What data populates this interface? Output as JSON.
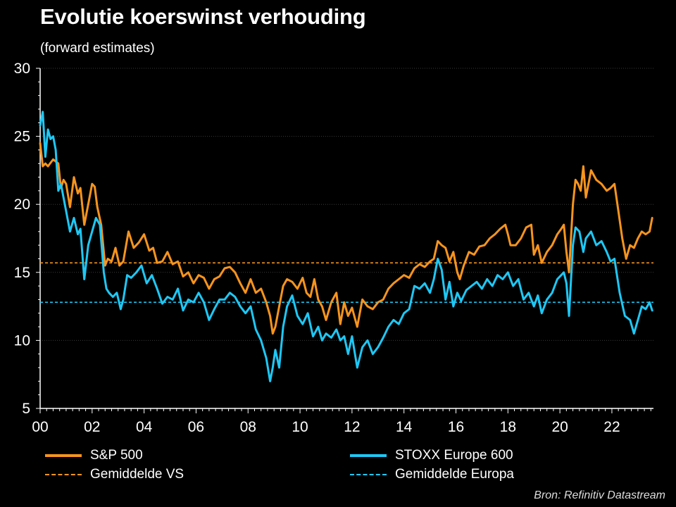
{
  "chart_data": {
    "type": "line",
    "title": "Evolutie koerswinst verhouding",
    "subtitle": "(forward estimates)",
    "ylim": [
      5,
      30
    ],
    "yticks": [
      5,
      10,
      15,
      20,
      25,
      30
    ],
    "xlim": [
      2000.0,
      2023.6
    ],
    "xticks": [
      2000,
      2002,
      2004,
      2006,
      2008,
      2010,
      2012,
      2014,
      2016,
      2018,
      2020,
      2022
    ],
    "xtick_labels": [
      "00",
      "02",
      "04",
      "06",
      "08",
      "10",
      "12",
      "14",
      "16",
      "18",
      "20",
      "22"
    ],
    "grid": "horizontal",
    "source": "Bron: Refinitiv Datastream",
    "colors": {
      "sp500": "#f7941d",
      "stoxx": "#1ec8f5",
      "background": "#000000"
    },
    "series": [
      {
        "name": "S&P 500",
        "style": "solid",
        "color": "#f7941d",
        "x": [
          2000.0,
          2000.1,
          2000.2,
          2000.3,
          2000.5,
          2000.7,
          2000.8,
          2000.9,
          2001.0,
          2001.15,
          2001.3,
          2001.45,
          2001.55,
          2001.7,
          2001.85,
          2002.0,
          2002.1,
          2002.2,
          2002.35,
          2002.5,
          2002.6,
          2002.75,
          2002.9,
          2003.05,
          2003.2,
          2003.4,
          2003.6,
          2003.8,
          2004.0,
          2004.2,
          2004.35,
          2004.5,
          2004.7,
          2004.9,
          2005.1,
          2005.3,
          2005.5,
          2005.7,
          2005.9,
          2006.1,
          2006.3,
          2006.5,
          2006.7,
          2006.9,
          2007.1,
          2007.3,
          2007.5,
          2007.7,
          2007.9,
          2008.1,
          2008.3,
          2008.5,
          2008.7,
          2008.85,
          2008.95,
          2009.05,
          2009.2,
          2009.35,
          2009.5,
          2009.7,
          2009.9,
          2010.1,
          2010.25,
          2010.4,
          2010.55,
          2010.7,
          2010.85,
          2011.0,
          2011.2,
          2011.4,
          2011.55,
          2011.7,
          2011.85,
          2012.0,
          2012.2,
          2012.4,
          2012.6,
          2012.8,
          2013.0,
          2013.2,
          2013.4,
          2013.6,
          2013.8,
          2014.0,
          2014.2,
          2014.4,
          2014.6,
          2014.8,
          2015.0,
          2015.15,
          2015.3,
          2015.45,
          2015.6,
          2015.75,
          2015.9,
          2016.05,
          2016.15,
          2016.3,
          2016.5,
          2016.7,
          2016.9,
          2017.1,
          2017.3,
          2017.5,
          2017.7,
          2017.9,
          2018.0,
          2018.1,
          2018.3,
          2018.5,
          2018.7,
          2018.9,
          2019.0,
          2019.15,
          2019.3,
          2019.5,
          2019.7,
          2019.9,
          2020.05,
          2020.15,
          2020.25,
          2020.35,
          2020.5,
          2020.6,
          2020.7,
          2020.8,
          2020.9,
          2021.0,
          2021.2,
          2021.4,
          2021.6,
          2021.8,
          2021.95,
          2022.1,
          2022.25,
          2022.4,
          2022.55,
          2022.7,
          2022.85,
          2023.0,
          2023.15,
          2023.3,
          2023.45,
          2023.55
        ],
        "y": [
          24.5,
          22.8,
          23.0,
          22.8,
          23.3,
          23.0,
          21.2,
          21.8,
          21.5,
          19.8,
          22.0,
          20.8,
          21.2,
          18.5,
          20.0,
          21.5,
          21.3,
          19.8,
          18.5,
          15.5,
          16.0,
          15.8,
          16.8,
          15.5,
          15.8,
          18.0,
          16.8,
          17.2,
          17.8,
          16.6,
          16.8,
          15.7,
          15.8,
          16.5,
          15.6,
          15.8,
          14.7,
          15.0,
          14.2,
          14.8,
          14.6,
          13.8,
          14.5,
          14.7,
          15.3,
          15.4,
          15.0,
          14.2,
          13.5,
          14.5,
          13.5,
          13.8,
          12.8,
          11.8,
          10.5,
          11.0,
          12.5,
          14.0,
          14.5,
          14.3,
          13.8,
          14.6,
          13.5,
          13.2,
          14.5,
          13.0,
          12.5,
          11.5,
          12.8,
          13.5,
          11.2,
          12.8,
          11.8,
          12.4,
          11.0,
          13.0,
          12.5,
          12.3,
          12.8,
          13.0,
          13.8,
          14.2,
          14.5,
          14.8,
          14.6,
          15.3,
          15.6,
          15.4,
          15.8,
          16.0,
          17.3,
          17.0,
          16.8,
          15.8,
          16.5,
          15.0,
          14.5,
          15.5,
          16.5,
          16.3,
          16.9,
          17.0,
          17.5,
          17.8,
          18.2,
          18.5,
          17.8,
          17.0,
          17.0,
          17.5,
          18.3,
          18.5,
          16.3,
          17.0,
          15.7,
          16.5,
          17.0,
          17.8,
          18.2,
          18.5,
          16.5,
          15.0,
          20.0,
          21.8,
          21.5,
          21.0,
          22.8,
          20.5,
          22.5,
          21.8,
          21.5,
          21.0,
          21.2,
          21.5,
          19.5,
          17.5,
          16.0,
          17.0,
          16.8,
          17.5,
          18.0,
          17.8,
          18.0,
          19.0
        ]
      },
      {
        "name": "STOXX Europe 600",
        "style": "solid",
        "color": "#1ec8f5",
        "x": [
          2000.0,
          2000.1,
          2000.2,
          2000.3,
          2000.4,
          2000.5,
          2000.6,
          2000.7,
          2000.8,
          2000.9,
          2001.0,
          2001.15,
          2001.3,
          2001.45,
          2001.55,
          2001.7,
          2001.85,
          2002.0,
          2002.15,
          2002.3,
          2002.45,
          2002.55,
          2002.65,
          2002.8,
          2002.95,
          2003.1,
          2003.2,
          2003.35,
          2003.5,
          2003.7,
          2003.9,
          2004.1,
          2004.3,
          2004.5,
          2004.7,
          2004.9,
          2005.1,
          2005.3,
          2005.5,
          2005.7,
          2005.9,
          2006.1,
          2006.3,
          2006.5,
          2006.7,
          2006.9,
          2007.1,
          2007.3,
          2007.5,
          2007.7,
          2007.9,
          2008.1,
          2008.3,
          2008.5,
          2008.7,
          2008.85,
          2008.95,
          2009.05,
          2009.2,
          2009.35,
          2009.5,
          2009.7,
          2009.9,
          2010.1,
          2010.3,
          2010.5,
          2010.7,
          2010.85,
          2011.0,
          2011.2,
          2011.4,
          2011.55,
          2011.7,
          2011.85,
          2012.0,
          2012.2,
          2012.4,
          2012.6,
          2012.8,
          2013.0,
          2013.2,
          2013.4,
          2013.6,
          2013.8,
          2014.0,
          2014.2,
          2014.4,
          2014.6,
          2014.8,
          2015.0,
          2015.15,
          2015.3,
          2015.45,
          2015.6,
          2015.75,
          2015.9,
          2016.05,
          2016.2,
          2016.4,
          2016.6,
          2016.8,
          2017.0,
          2017.2,
          2017.4,
          2017.6,
          2017.8,
          2018.0,
          2018.2,
          2018.4,
          2018.6,
          2018.8,
          2019.0,
          2019.15,
          2019.3,
          2019.5,
          2019.7,
          2019.9,
          2020.05,
          2020.15,
          2020.25,
          2020.35,
          2020.5,
          2020.6,
          2020.75,
          2020.9,
          2021.0,
          2021.2,
          2021.4,
          2021.6,
          2021.8,
          2021.95,
          2022.1,
          2022.3,
          2022.5,
          2022.7,
          2022.85,
          2023.0,
          2023.15,
          2023.3,
          2023.45,
          2023.55
        ],
        "y": [
          25.8,
          26.8,
          23.5,
          25.5,
          24.8,
          25.0,
          24.0,
          21.0,
          21.5,
          20.5,
          19.5,
          18.0,
          19.0,
          17.8,
          18.2,
          14.5,
          17.0,
          18.0,
          19.0,
          18.5,
          15.0,
          13.8,
          13.5,
          13.2,
          13.5,
          12.3,
          13.0,
          14.8,
          14.6,
          15.0,
          15.5,
          14.2,
          14.8,
          13.8,
          12.7,
          13.2,
          13.0,
          13.8,
          12.2,
          13.0,
          12.8,
          13.5,
          12.8,
          11.5,
          12.3,
          13.0,
          13.0,
          13.5,
          13.2,
          12.5,
          12.0,
          12.5,
          10.8,
          10.0,
          8.7,
          7.0,
          8.0,
          9.3,
          8.0,
          11.0,
          12.5,
          13.3,
          11.8,
          11.2,
          12.0,
          10.3,
          11.0,
          10.0,
          10.5,
          10.2,
          10.8,
          10.0,
          10.3,
          9.0,
          10.3,
          8.0,
          9.5,
          10.0,
          9.0,
          9.5,
          10.2,
          11.0,
          11.5,
          11.2,
          12.0,
          12.3,
          14.0,
          13.8,
          14.2,
          13.5,
          14.5,
          16.0,
          15.2,
          13.0,
          14.3,
          12.5,
          13.5,
          12.9,
          13.7,
          14.0,
          14.3,
          13.8,
          14.5,
          14.0,
          14.8,
          14.5,
          15.0,
          14.0,
          14.5,
          13.0,
          13.5,
          12.5,
          13.3,
          12.0,
          13.0,
          13.5,
          14.5,
          14.8,
          15.0,
          14.2,
          11.8,
          17.0,
          18.3,
          18.0,
          16.5,
          17.5,
          18.0,
          17.0,
          17.3,
          16.5,
          15.8,
          16.0,
          13.5,
          11.8,
          11.5,
          10.5,
          11.5,
          12.5,
          12.3,
          12.8,
          12.2
        ]
      },
      {
        "name": "Gemiddelde VS",
        "style": "dashed",
        "color": "#f7941d",
        "value": 15.7
      },
      {
        "name": "Gemiddelde Europa",
        "style": "dashed",
        "color": "#1ec8f5",
        "value": 12.8
      }
    ]
  }
}
